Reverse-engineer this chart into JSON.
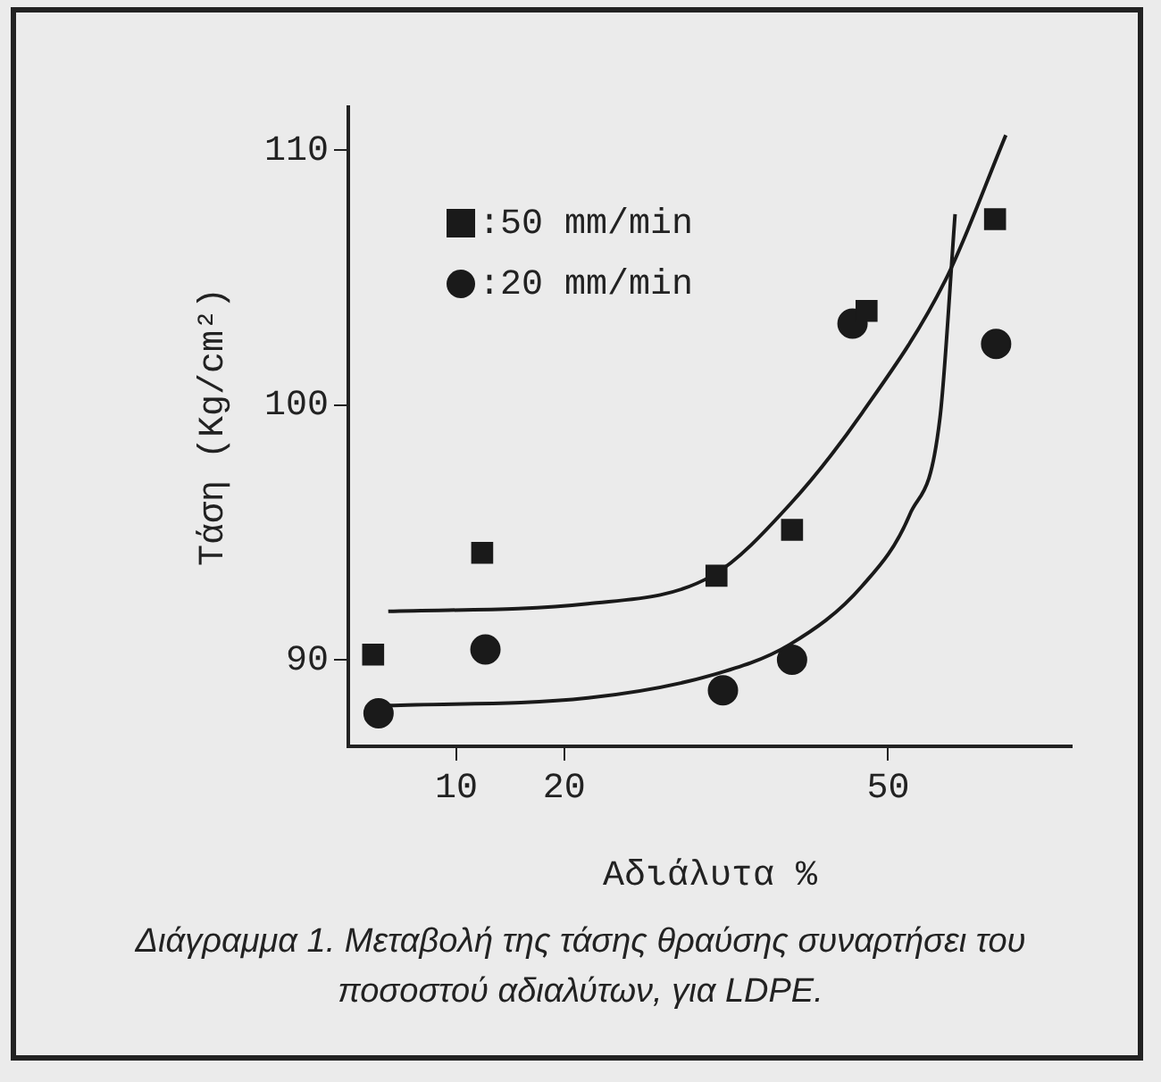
{
  "chart_data": {
    "type": "scatter",
    "xlabel": "Αδιάλυτα %",
    "ylabel": "Τάση (Kg/cm²)",
    "xlim": [
      0,
      67
    ],
    "ylim": [
      86.6,
      111.7
    ],
    "xticks": [
      10,
      20,
      50
    ],
    "yticks": [
      90,
      100,
      110
    ],
    "grid": false,
    "legend": "top left",
    "annotations": [
      "Διάγραμμα 1. Μεταβολή της τάσης θραύσης συναρτήσει του ποσοστού αδιαλύτων, για LDPE."
    ],
    "series": [
      {
        "name": ":50 mm/min",
        "type": "scatter",
        "marker": "square",
        "color": "#1a1a1a",
        "x": [
          2.3,
          12.4,
          34.1,
          41.1,
          48.0,
          59.9
        ],
        "values": [
          90.2,
          94.2,
          93.3,
          95.1,
          103.7,
          107.3
        ]
      },
      {
        "name": ":20 mm/min",
        "type": "scatter",
        "marker": "circle",
        "color": "#1a1a1a",
        "x": [
          2.8,
          12.7,
          34.7,
          41.1,
          46.7,
          60.0
        ],
        "values": [
          87.9,
          90.4,
          88.8,
          90.0,
          103.2,
          102.4
        ]
      },
      {
        "type": "line",
        "marker": "none",
        "color": "#1a1a1a",
        "x": [
          3.7,
          22.2,
          33.7,
          40.9,
          47.6,
          55.3,
          60.9
        ],
        "values": [
          91.9,
          92.2,
          93.3,
          96.1,
          99.7,
          104.9,
          110.6
        ]
      },
      {
        "type": "line",
        "marker": "none",
        "color": "#1a1a1a",
        "x": [
          3.7,
          22.2,
          33.7,
          40.9,
          47.6,
          52.0,
          54.8,
          56.2
        ],
        "values": [
          88.2,
          88.5,
          89.4,
          90.6,
          92.9,
          95.7,
          99.5,
          107.5
        ]
      }
    ]
  }
}
